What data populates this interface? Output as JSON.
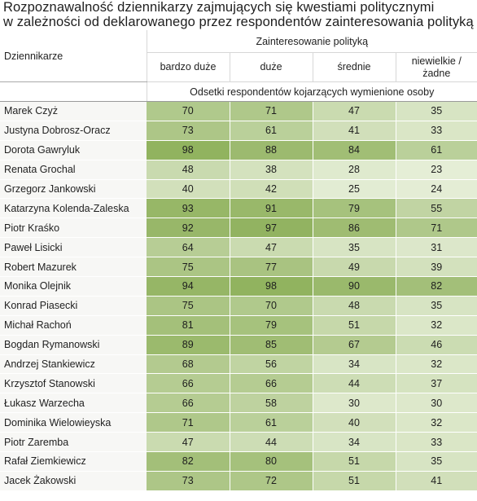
{
  "title": {
    "line1": "Rozpoznawalność dziennikarzy zajmujących się kwestiami politycznymi",
    "line2": "w zależności od deklarowanego przez respondentów zainteresowania polityką"
  },
  "colors": {
    "low": "#e8f0db",
    "high": "#8fb15c",
    "text": "#1f1f1f"
  },
  "chart_data": {
    "type": "table",
    "title": "Rozpoznawalność dziennikarzy zajmujących się kwestiami politycznymi w zależności od deklarowanego przez respondentów zainteresowania polityką",
    "row_header": "Dziennikarze",
    "column_group": "Zainteresowanie polityką",
    "columns": [
      "bardzo duże",
      "duże",
      "średnie",
      "niewielkie / żadne"
    ],
    "subtitle": "Odsetki respondentów kojarzących wymienione osoby",
    "rows": [
      {
        "name": "Marek Czyż",
        "values": [
          70,
          71,
          47,
          35
        ]
      },
      {
        "name": "Justyna Dobrosz-Oracz",
        "values": [
          73,
          61,
          41,
          33
        ]
      },
      {
        "name": "Dorota Gawryluk",
        "values": [
          98,
          88,
          84,
          61
        ]
      },
      {
        "name": "Renata Grochal",
        "values": [
          48,
          38,
          28,
          23
        ]
      },
      {
        "name": "Grzegorz Jankowski",
        "values": [
          40,
          42,
          25,
          24
        ]
      },
      {
        "name": "Katarzyna Kolenda-Zaleska",
        "values": [
          93,
          91,
          79,
          55
        ]
      },
      {
        "name": "Piotr Kraśko",
        "values": [
          92,
          97,
          86,
          71
        ]
      },
      {
        "name": "Paweł Lisicki",
        "values": [
          64,
          47,
          35,
          31
        ]
      },
      {
        "name": "Robert Mazurek",
        "values": [
          75,
          77,
          49,
          39
        ]
      },
      {
        "name": "Monika Olejnik",
        "values": [
          94,
          98,
          90,
          82
        ]
      },
      {
        "name": "Konrad Piasecki",
        "values": [
          75,
          70,
          48,
          35
        ]
      },
      {
        "name": "Michał Rachoń",
        "values": [
          81,
          79,
          51,
          32
        ]
      },
      {
        "name": "Bogdan Rymanowski",
        "values": [
          89,
          85,
          67,
          46
        ]
      },
      {
        "name": "Andrzej Stankiewicz",
        "values": [
          68,
          56,
          34,
          32
        ]
      },
      {
        "name": "Krzysztof Stanowski",
        "values": [
          66,
          66,
          44,
          37
        ]
      },
      {
        "name": "Łukasz Warzecha",
        "values": [
          66,
          58,
          30,
          30
        ]
      },
      {
        "name": "Dominika Wielowieyska",
        "values": [
          71,
          61,
          40,
          32
        ]
      },
      {
        "name": "Piotr Zaremba",
        "values": [
          47,
          44,
          34,
          33
        ]
      },
      {
        "name": "Rafał Ziemkiewicz",
        "values": [
          82,
          80,
          51,
          35
        ]
      },
      {
        "name": "Jacek Żakowski",
        "values": [
          73,
          72,
          51,
          41
        ]
      }
    ]
  }
}
